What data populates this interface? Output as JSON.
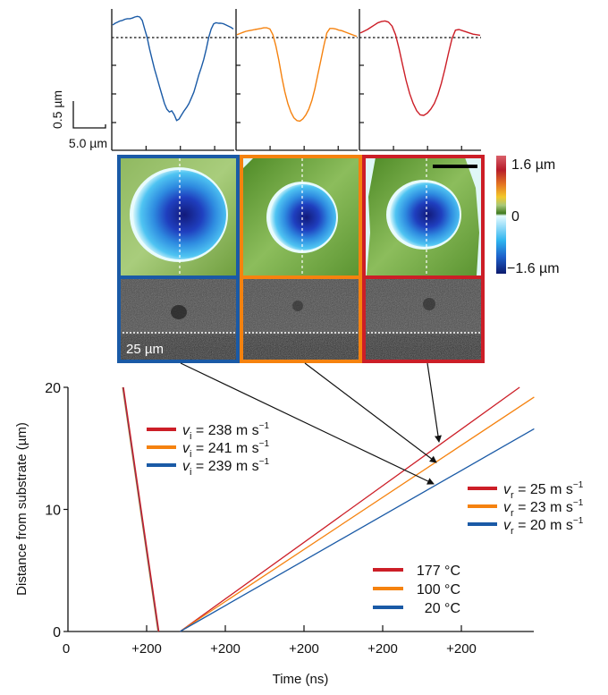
{
  "profiles": {
    "scale_bar_vertical_label": "0.5 µm",
    "scale_bar_horizontal_label": "5.0 µm",
    "panels": [
      {
        "name": "20C",
        "color": "#1a5aa6",
        "y": [
          0.22,
          0.25,
          0.27,
          0.29,
          0.3,
          0.32,
          0.33,
          0.33,
          0.34,
          0.36,
          0.37,
          0.36,
          0.3,
          0.15,
          0.0,
          -0.2,
          -0.38,
          -0.55,
          -0.7,
          -0.85,
          -1.0,
          -1.15,
          -1.25,
          -1.3,
          -1.28,
          -1.35,
          -1.45,
          -1.42,
          -1.35,
          -1.28,
          -1.22,
          -1.15,
          -1.05,
          -0.95,
          -0.8,
          -0.65,
          -0.52,
          -0.38,
          -0.2,
          0.0,
          0.15,
          0.24,
          0.26,
          0.25,
          0.25,
          0.24,
          0.22,
          0.2,
          0.18,
          0.15
        ]
      },
      {
        "name": "100C",
        "color": "#f5820f",
        "y": [
          0.05,
          0.07,
          0.09,
          0.11,
          0.12,
          0.13,
          0.14,
          0.15,
          0.16,
          0.17,
          0.17,
          0.15,
          0.05,
          -0.15,
          -0.4,
          -0.7,
          -0.95,
          -1.15,
          -1.3,
          -1.4,
          -1.45,
          -1.46,
          -1.42,
          -1.35,
          -1.25,
          -1.1,
          -0.9,
          -0.65,
          -0.4,
          -0.15,
          0.08,
          0.16,
          0.16,
          0.15,
          0.13,
          0.12,
          0.1,
          0.08,
          0.06,
          0.04,
          0.02
        ]
      },
      {
        "name": "177C",
        "color": "#cc1e27",
        "y": [
          0.08,
          0.11,
          0.14,
          0.18,
          0.22,
          0.26,
          0.28,
          0.29,
          0.27,
          0.2,
          0.05,
          -0.2,
          -0.48,
          -0.75,
          -0.98,
          -1.15,
          -1.28,
          -1.35,
          -1.36,
          -1.32,
          -1.25,
          -1.15,
          -1.0,
          -0.8,
          -0.55,
          -0.28,
          -0.02,
          0.13,
          0.14,
          0.12,
          0.1,
          0.08,
          0.06,
          0.05,
          0.04
        ]
      }
    ]
  },
  "colorbar": {
    "max_label": "1.6 µm",
    "zero_label": "0",
    "min_label": "−1.6 µm"
  },
  "images": {
    "scale_label": "25 µm",
    "frame_colors": [
      "#1a5aa6",
      "#f5820f",
      "#cc1e27"
    ]
  },
  "chart_data": {
    "type": "line",
    "title": "",
    "xlabel": "Time (ns)",
    "ylabel": "Distance from substrate (µm)",
    "xlim": [
      0,
      1175
    ],
    "ylim": [
      0,
      20
    ],
    "x_ticks": [
      0,
      200,
      400,
      600,
      800,
      1000
    ],
    "x_tick_labels": [
      "0",
      "+200",
      "+200",
      "+200",
      "+200",
      "+200"
    ],
    "y_ticks": [
      0,
      10,
      20
    ],
    "y_tick_labels": [
      "0",
      "10",
      "20"
    ],
    "grid": false,
    "series": [
      {
        "name": "177 °C",
        "color": "#cc1e27",
        "impact": {
          "x": [
            141,
            231
          ],
          "y": [
            20,
            0
          ],
          "label": "v_i = 238 m s^-1",
          "speed": "238"
        },
        "rebound": {
          "x": [
            285,
            1148
          ],
          "y": [
            0,
            20
          ],
          "label": "v_r = 25 m s^-1",
          "speed": "25"
        }
      },
      {
        "name": "100 °C",
        "color": "#f5820f",
        "impact": {
          "x": [
            139,
            229
          ],
          "y": [
            20,
            0
          ],
          "label": "v_i = 241 m s^-1",
          "speed": "241"
        },
        "rebound": {
          "x": [
            285,
            1185
          ],
          "y": [
            0,
            19.2
          ],
          "label": "v_r = 23 m s^-1",
          "speed": "23"
        }
      },
      {
        "name": "20 °C",
        "color": "#1a5aa6",
        "impact": {
          "x": [
            140,
            230
          ],
          "y": [
            20,
            0
          ],
          "label": "v_i = 239 m s^-1",
          "speed": "239"
        },
        "rebound": {
          "x": [
            285,
            1185
          ],
          "y": [
            0,
            16.6
          ],
          "label": "v_r = 20 m s^-1",
          "speed": "20"
        }
      }
    ],
    "legends": {
      "impact": {
        "placement": "upper-left",
        "entries": [
          {
            "prefix": "v",
            "sub": "i",
            "text": " = 238 m s",
            "sup": "−1",
            "color": "#cc1e27"
          },
          {
            "prefix": "v",
            "sub": "i",
            "text": " = 241 m s",
            "sup": "−1",
            "color": "#f5820f"
          },
          {
            "prefix": "v",
            "sub": "i",
            "text": " = 239 m s",
            "sup": "−1",
            "color": "#1a5aa6"
          }
        ]
      },
      "rebound": {
        "placement": "right",
        "entries": [
          {
            "prefix": "v",
            "sub": "r",
            "text": " = 25 m s",
            "sup": "−1",
            "color": "#cc1e27"
          },
          {
            "prefix": "v",
            "sub": "r",
            "text": " = 23 m s",
            "sup": "−1",
            "color": "#f5820f"
          },
          {
            "prefix": "v",
            "sub": "r",
            "text": " = 20 m s",
            "sup": "−1",
            "color": "#1a5aa6"
          }
        ]
      },
      "temperature": {
        "placement": "lower-right",
        "entries": [
          {
            "text": "177 °C",
            "color": "#cc1e27"
          },
          {
            "text": "100 °C",
            "color": "#f5820f"
          },
          {
            "text": " 20 °C",
            "color": "#1a5aa6"
          }
        ]
      }
    }
  }
}
